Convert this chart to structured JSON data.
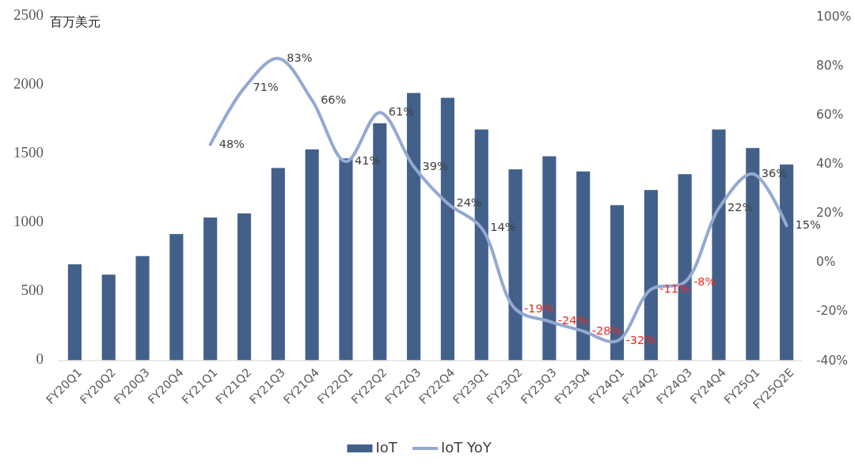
{
  "chart_data": {
    "type": "bar",
    "ylabel": "百万美元",
    "categories": [
      "FY20Q1",
      "FY20Q2",
      "FY20Q3",
      "FY20Q4",
      "FY21Q1",
      "FY21Q2",
      "FY21Q3",
      "FY21Q4",
      "FY22Q1",
      "FY22Q2",
      "FY22Q3",
      "FY22Q4",
      "FY23Q1",
      "FY23Q2",
      "FY23Q3",
      "FY23Q4",
      "FY24Q1",
      "FY24Q2",
      "FY24Q3",
      "FY24Q4",
      "FY25Q1",
      "FY25Q2E"
    ],
    "ylim": [
      0,
      2500
    ],
    "yticks": [
      0,
      500,
      1000,
      1500,
      2000,
      2500
    ],
    "y2lim": [
      -40,
      100
    ],
    "y2ticks": [
      {
        "value": -40,
        "label": "-40%"
      },
      {
        "value": -20,
        "label": "-20%"
      },
      {
        "value": 0,
        "label": "0%"
      },
      {
        "value": 20,
        "label": "20%"
      },
      {
        "value": 40,
        "label": "40%"
      },
      {
        "value": 60,
        "label": "60%"
      },
      {
        "value": 80,
        "label": "80%"
      },
      {
        "value": 100,
        "label": "100%"
      }
    ],
    "series": [
      {
        "name": "IoT",
        "color": "#42608a",
        "values": [
          700,
          625,
          760,
          920,
          1040,
          1070,
          1400,
          1535,
          1470,
          1725,
          1945,
          1910,
          1680,
          1390,
          1485,
          1375,
          1130,
          1240,
          1355,
          1680,
          1545,
          1425
        ]
      },
      {
        "name": "IoT YoY",
        "type": "line",
        "axis": "y2",
        "color": "#94a9d2",
        "values": [
          null,
          null,
          null,
          null,
          48,
          71,
          83,
          66,
          41,
          61,
          39,
          24,
          14,
          -19,
          -24,
          -28,
          -32,
          -11,
          -8,
          22,
          36,
          15
        ],
        "value_labels": [
          null,
          null,
          null,
          null,
          "48%",
          "71%",
          "83%",
          "66%",
          "41%",
          "61%",
          "39%",
          "24%",
          "14%",
          "-19%",
          "-24%",
          "-28%",
          "-32%",
          "-11%",
          "-8%",
          "22%",
          "36%",
          "15%"
        ]
      }
    ],
    "legend": "bottom"
  }
}
